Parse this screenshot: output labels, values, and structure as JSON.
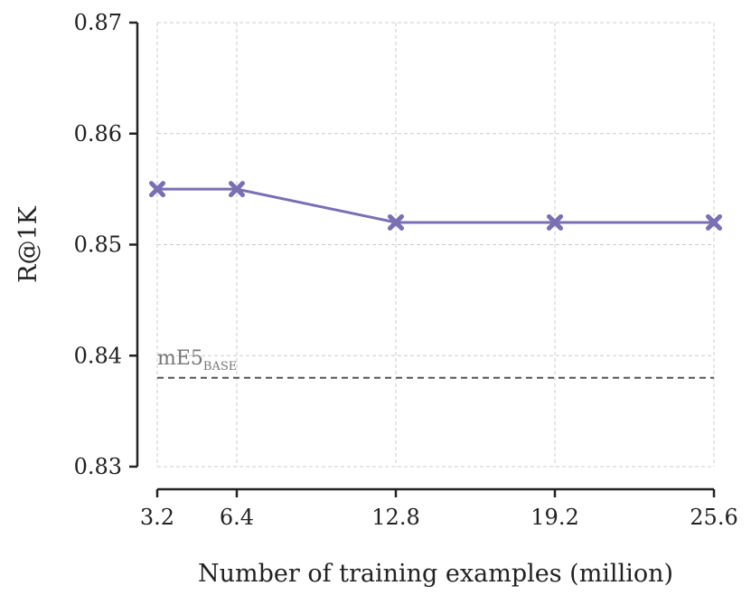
{
  "chart_data": {
    "type": "line",
    "title": "",
    "xlabel": "Number of training examples (million)",
    "ylabel": "R@1K",
    "x": [
      3.2,
      6.4,
      12.8,
      19.2,
      25.6
    ],
    "xticks": [
      "3.2",
      "6.4",
      "12.8",
      "19.2",
      "25.6"
    ],
    "yticks": [
      "0.83",
      "0.84",
      "0.85",
      "0.86",
      "0.87"
    ],
    "xlim": [
      3.2,
      25.6
    ],
    "ylim": [
      0.83,
      0.87
    ],
    "grid": true,
    "series": [
      {
        "values": [
          0.855,
          0.855,
          0.852,
          0.852,
          0.852
        ],
        "color": "#7b6fb4",
        "marker": "x"
      }
    ],
    "baseline": {
      "value": 0.838,
      "label_main": "mE5",
      "label_sub": "BASE",
      "color": "#555555",
      "style": "dashed"
    }
  }
}
